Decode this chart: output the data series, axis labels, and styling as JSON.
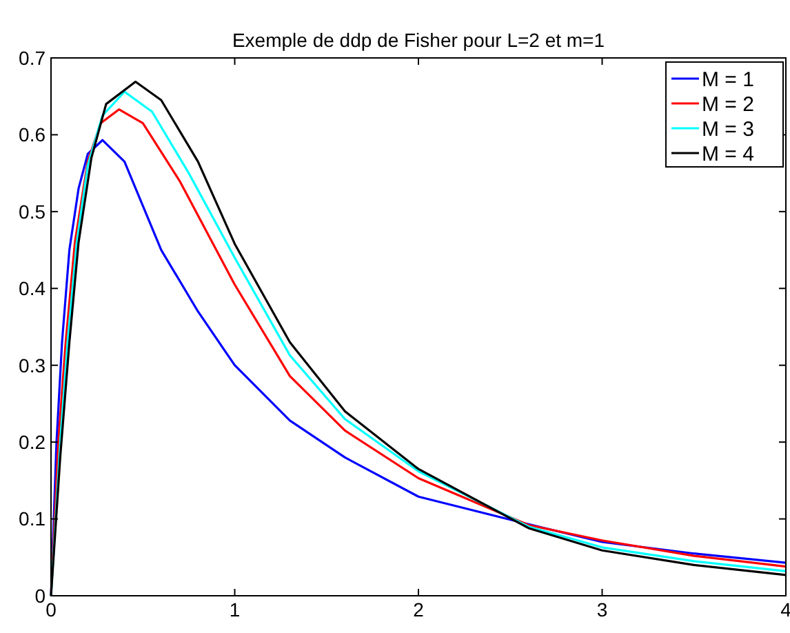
{
  "chart_data": {
    "type": "line",
    "title": "Exemple de ddp de Fisher pour L=2 et m=1",
    "xlim": [
      0,
      4
    ],
    "ylim": [
      0,
      0.7
    ],
    "xticks": [
      0,
      1,
      2,
      3,
      4
    ],
    "yticks": [
      0,
      0.1,
      0.2,
      0.3,
      0.4,
      0.5,
      0.6,
      0.7
    ],
    "grid": false,
    "legend": "top right",
    "line_style": "solid",
    "marker": "none",
    "series": [
      {
        "name": "M = 1",
        "color": "#0000ff",
        "x": [
          0,
          0.03,
          0.06,
          0.1,
          0.15,
          0.2,
          0.28,
          0.4,
          0.6,
          0.8,
          1.0,
          1.3,
          1.6,
          2.0,
          2.6,
          3,
          3.5,
          4
        ],
        "values": [
          0,
          0.2,
          0.33,
          0.45,
          0.53,
          0.575,
          0.593,
          0.565,
          0.45,
          0.37,
          0.3,
          0.228,
          0.18,
          0.129,
          0.093,
          0.07,
          0.055,
          0.043
        ]
      },
      {
        "name": "M = 2",
        "color": "#ff0000",
        "x": [
          0,
          0.04,
          0.08,
          0.13,
          0.2,
          0.27,
          0.37,
          0.5,
          0.7,
          1.0,
          1.3,
          1.6,
          2.0,
          2.6,
          3,
          3.5,
          4
        ],
        "values": [
          0,
          0.2,
          0.33,
          0.46,
          0.565,
          0.615,
          0.633,
          0.615,
          0.54,
          0.405,
          0.286,
          0.215,
          0.153,
          0.092,
          0.072,
          0.052,
          0.038
        ]
      },
      {
        "name": "M = 3",
        "color": "#00ffff",
        "x": [
          0,
          0.05,
          0.09,
          0.14,
          0.2,
          0.28,
          0.4,
          0.55,
          0.75,
          1.0,
          1.3,
          1.6,
          2.0,
          2.6,
          3,
          3.5,
          4
        ],
        "values": [
          0,
          0.2,
          0.33,
          0.46,
          0.56,
          0.625,
          0.656,
          0.63,
          0.55,
          0.44,
          0.313,
          0.23,
          0.162,
          0.09,
          0.063,
          0.045,
          0.032
        ]
      },
      {
        "name": "M = 4",
        "color": "#000000",
        "x": [
          0,
          0.05,
          0.1,
          0.15,
          0.22,
          0.3,
          0.46,
          0.6,
          0.8,
          1.0,
          1.3,
          1.6,
          2.0,
          2.6,
          3,
          3.5,
          4
        ],
        "values": [
          0,
          0.18,
          0.33,
          0.46,
          0.57,
          0.64,
          0.669,
          0.645,
          0.565,
          0.458,
          0.33,
          0.24,
          0.165,
          0.088,
          0.059,
          0.04,
          0.027
        ]
      }
    ]
  }
}
